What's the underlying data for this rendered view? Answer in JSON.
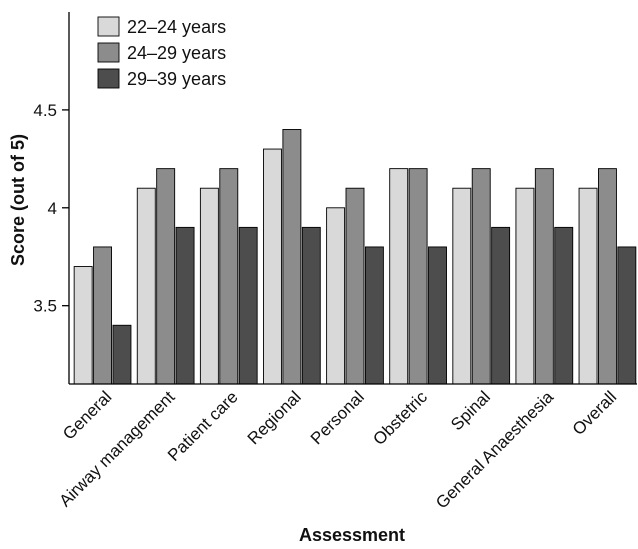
{
  "chart_data": {
    "type": "bar",
    "title": "",
    "xlabel": "Assessment",
    "ylabel": "Score (out of 5)",
    "ylim": [
      3.1,
      5.0
    ],
    "yticks": [
      "3.5",
      "4",
      "4.5"
    ],
    "grid": false,
    "legend_position": "top-left",
    "categories": [
      "General",
      "Airway management",
      "Patient care",
      "Regional",
      "Personal",
      "Obstetric",
      "Spinal",
      "General Anaesthesia",
      "Overall"
    ],
    "series": [
      {
        "name": "22–24 years",
        "color": "#d9d9d9",
        "values": [
          3.7,
          4.1,
          4.1,
          4.3,
          4.0,
          4.2,
          4.1,
          4.1,
          4.1
        ]
      },
      {
        "name": "24–29 years",
        "color": "#8c8c8c",
        "values": [
          3.8,
          4.2,
          4.2,
          4.4,
          4.1,
          4.2,
          4.2,
          4.2,
          4.2
        ]
      },
      {
        "name": "29–39 years",
        "color": "#4d4d4d",
        "values": [
          3.4,
          3.9,
          3.9,
          3.9,
          3.8,
          3.8,
          3.9,
          3.9,
          3.8
        ]
      }
    ]
  }
}
